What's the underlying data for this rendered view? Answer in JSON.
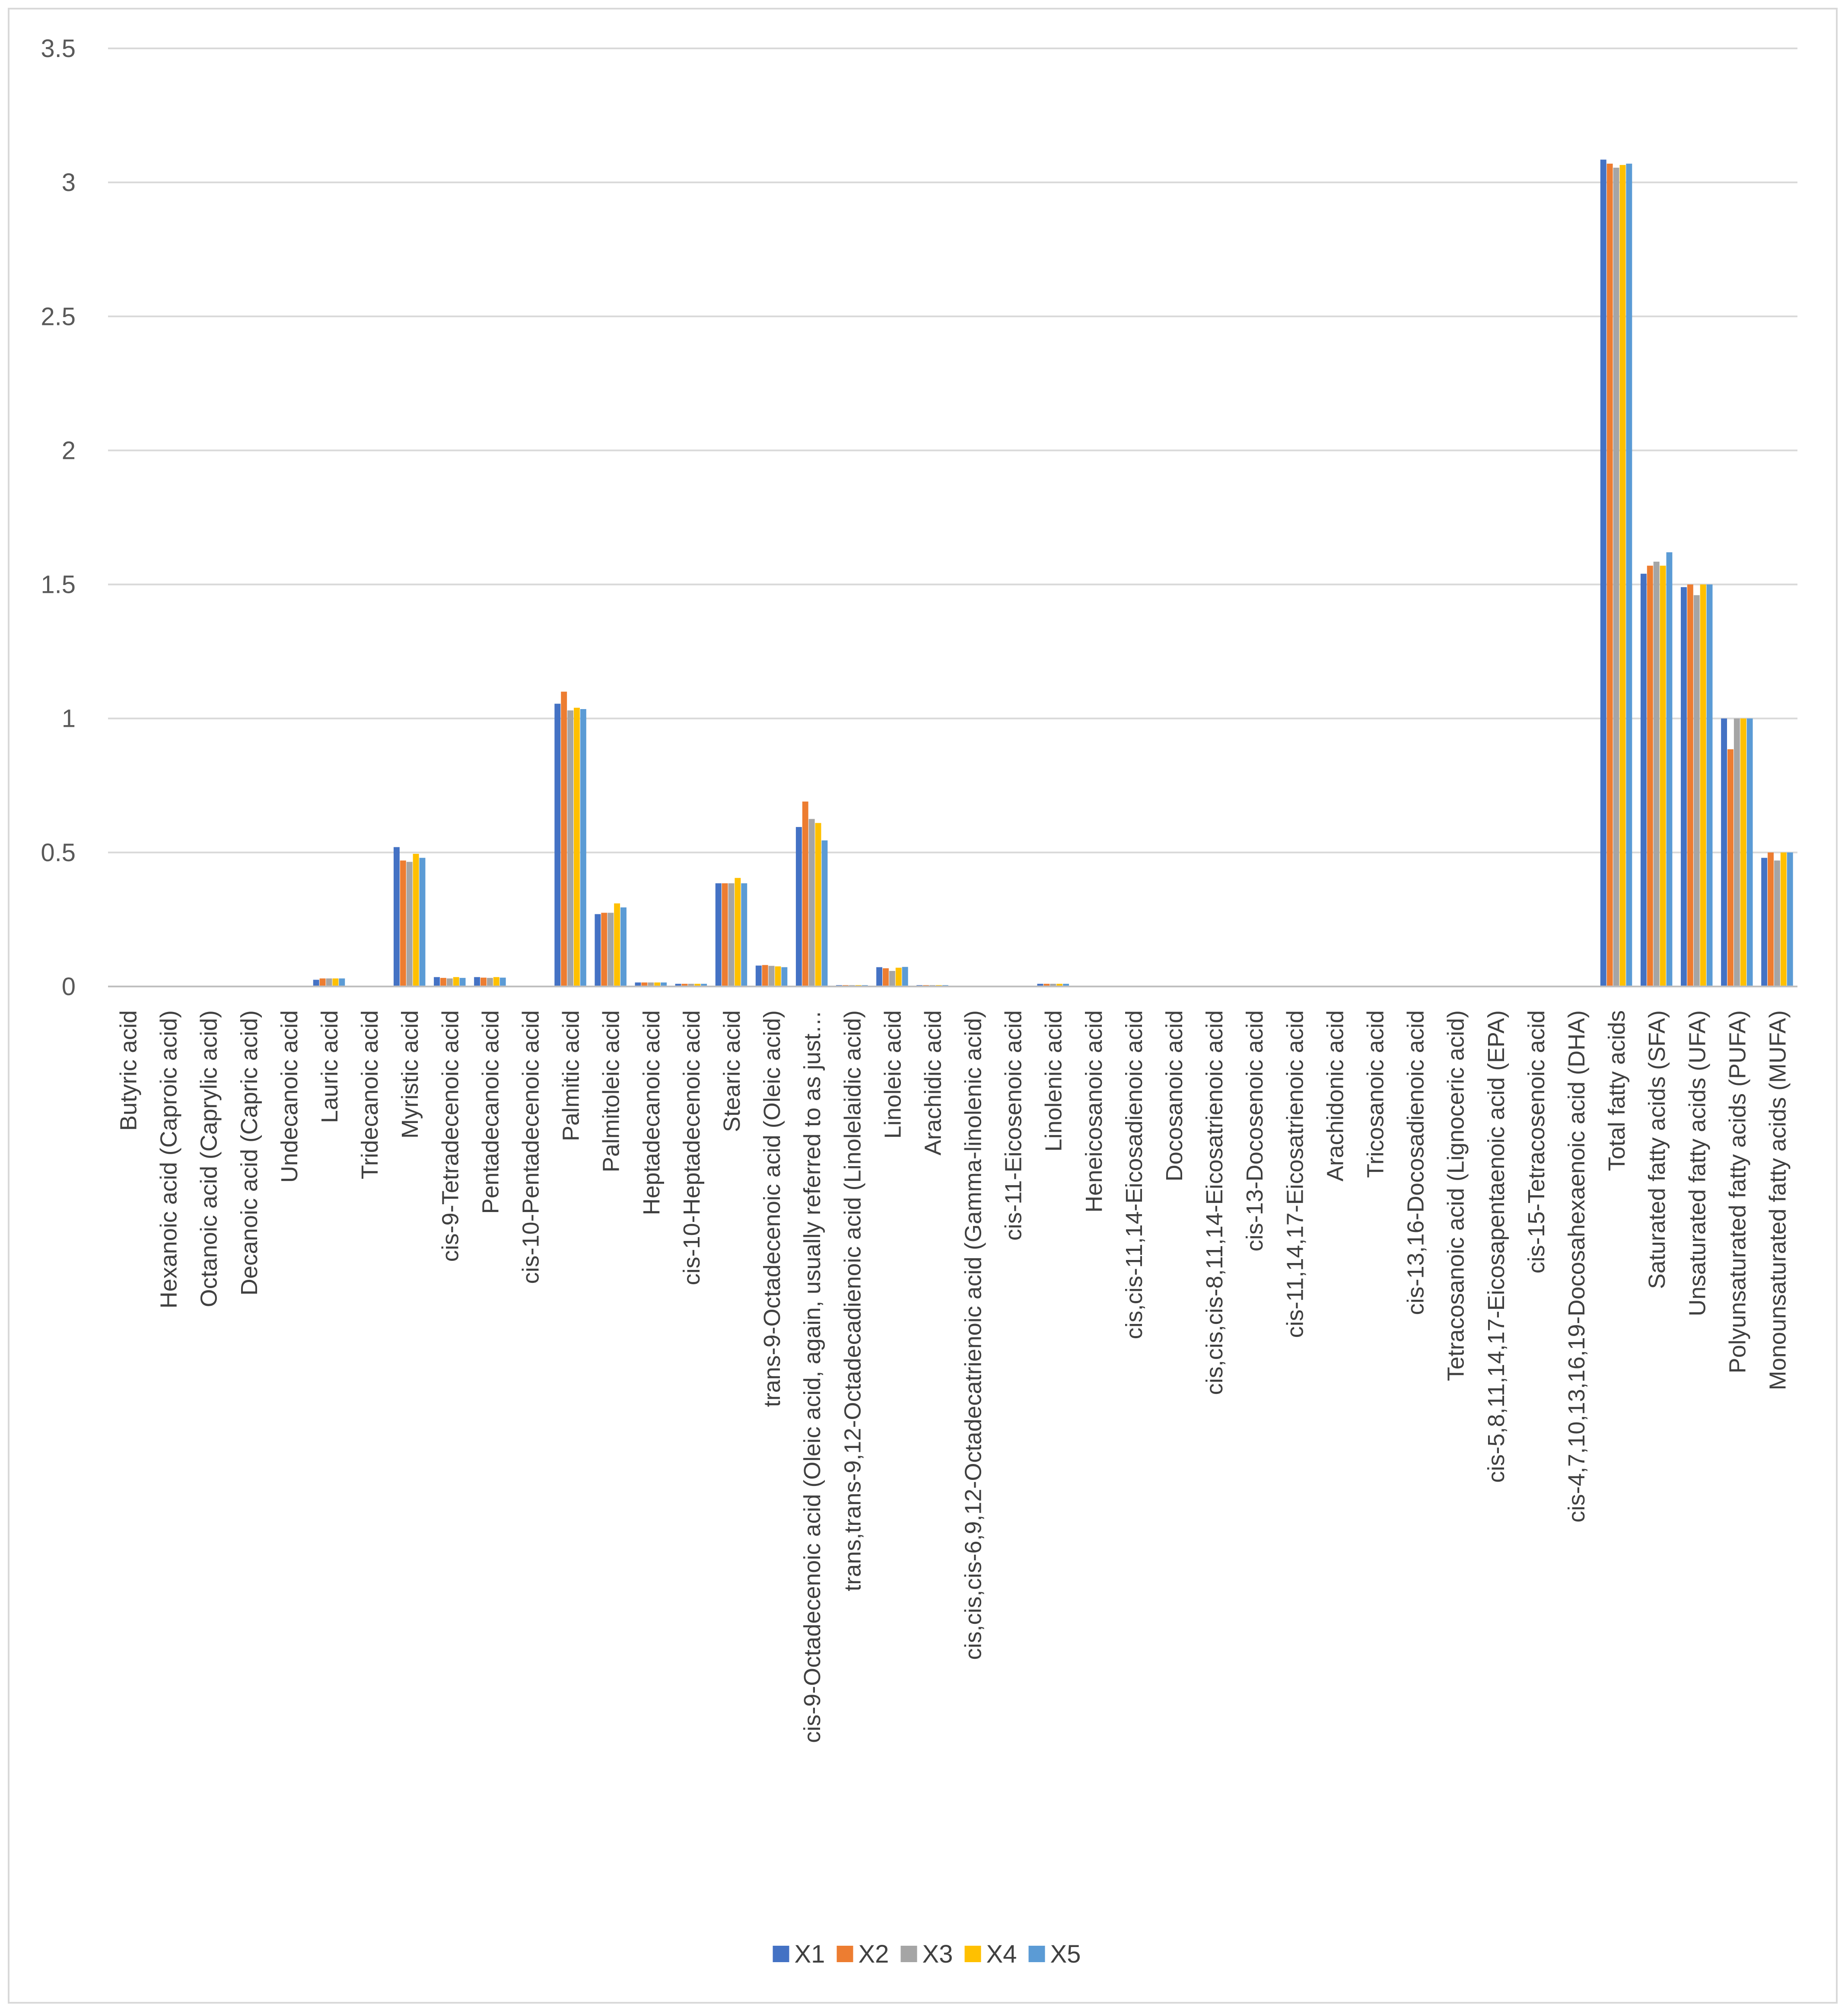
{
  "chart_data": {
    "type": "bar",
    "title": "",
    "xlabel": "",
    "ylabel": "",
    "ylim": [
      0,
      3.5
    ],
    "yticks": [
      0,
      0.5,
      1,
      1.5,
      2,
      2.5,
      3,
      3.5
    ],
    "ytick_labels": [
      "0",
      "0.5",
      "1",
      "1.5",
      "2",
      "2.5",
      "3",
      "3.5"
    ],
    "grid": true,
    "legend_position": "bottom",
    "categories": [
      "Butyric acid",
      "Hexanoic acid (Caproic acid)",
      "Octanoic acid (Caprylic acid)",
      "Decanoic acid (Capric acid)",
      "Undecanoic acid",
      "Lauric acid",
      "Tridecanoic acid",
      "Myristic acid",
      "cis-9-Tetradecenoic acid",
      "Pentadecanoic acid",
      "cis-10-Pentadecenoic acid",
      "Palmitic acid",
      "Palmitoleic acid",
      "Heptadecanoic acid",
      "cis-10-Heptadecenoic acid",
      "Stearic acid",
      "trans-9-Octadecenoic acid (Oleic acid)",
      "cis-9-Octadecenoic acid (Oleic acid, again, usually referred to as just…",
      "trans,trans-9,12-Octadecadienoic acid (Linolelaidic acid)",
      "Linoleic acid",
      "Arachidic acid",
      "cis,cis,cis-6,9,12-Octadecatrienoic acid (Gamma-linolenic acid)",
      "cis-11-Eicosenoic acid",
      "Linolenic acid",
      "Heneicosanoic acid",
      "cis,cis-11,14-Eicosadienoic acid",
      "Docosanoic acid",
      "cis,cis,cis-8,11,14-Eicosatrienoic acid",
      "cis-13-Docosenoic acid",
      "cis-11,14,17-Eicosatrienoic acid",
      "Arachidonic acid",
      "Tricosanoic acid",
      "cis-13,16-Docosadienoic acid",
      "Tetracosanoic acid (Lignoceric acid)",
      "cis-5,8,11,14,17-Eicosapentaenoic acid (EPA)",
      "cis-15-Tetracosenoic acid",
      "cis-4,7,10,13,16,19-Docosahexaenoic acid (DHA)",
      "Total fatty acids",
      "Saturated fatty acids (SFA)",
      "Unsaturated fatty acids (UFA)",
      "Polyunsaturated fatty acids (PUFA)",
      "Monounsaturated fatty acids (MUFA)"
    ],
    "series": [
      {
        "name": "X1",
        "color": "#4472c4",
        "values": [
          0,
          0,
          0,
          0,
          0,
          0.025,
          0,
          0.52,
          0.035,
          0.035,
          0,
          1.055,
          0.27,
          0.015,
          0.01,
          0.385,
          0.078,
          0.595,
          0.005,
          0.072,
          0.005,
          0,
          0,
          0.01,
          0,
          0,
          0,
          0,
          0,
          0,
          0,
          0,
          0,
          0,
          0,
          0,
          0,
          3.085,
          1.54,
          1.49,
          1.0,
          0.48
        ]
      },
      {
        "name": "X2",
        "color": "#ed7d31",
        "values": [
          0,
          0,
          0,
          0,
          0,
          0.03,
          0,
          0.47,
          0.032,
          0.033,
          0,
          1.1,
          0.275,
          0.015,
          0.01,
          0.385,
          0.08,
          0.69,
          0.005,
          0.068,
          0.005,
          0,
          0,
          0.01,
          0,
          0,
          0,
          0,
          0,
          0,
          0,
          0,
          0,
          0,
          0,
          0,
          0,
          3.07,
          1.57,
          1.5,
          0.885,
          0.5
        ]
      },
      {
        "name": "X3",
        "color": "#a5a5a5",
        "values": [
          0,
          0,
          0,
          0,
          0,
          0.03,
          0,
          0.465,
          0.03,
          0.032,
          0,
          1.03,
          0.275,
          0.015,
          0.01,
          0.385,
          0.077,
          0.625,
          0.005,
          0.058,
          0.005,
          0,
          0,
          0.01,
          0,
          0,
          0,
          0,
          0,
          0,
          0,
          0,
          0,
          0,
          0,
          0,
          0,
          3.055,
          1.585,
          1.46,
          1.0,
          0.47
        ]
      },
      {
        "name": "X4",
        "color": "#ffc000",
        "values": [
          0,
          0,
          0,
          0,
          0,
          0.03,
          0,
          0.495,
          0.035,
          0.035,
          0,
          1.04,
          0.31,
          0.015,
          0.01,
          0.405,
          0.075,
          0.61,
          0.005,
          0.07,
          0.005,
          0,
          0,
          0.01,
          0,
          0,
          0,
          0,
          0,
          0,
          0,
          0,
          0,
          0,
          0,
          0,
          0,
          3.065,
          1.57,
          1.5,
          1.0,
          0.5
        ]
      },
      {
        "name": "X5",
        "color": "#5b9bd5",
        "values": [
          0,
          0,
          0,
          0,
          0,
          0.03,
          0,
          0.48,
          0.032,
          0.033,
          0,
          1.035,
          0.295,
          0.015,
          0.01,
          0.385,
          0.072,
          0.545,
          0.005,
          0.073,
          0.005,
          0,
          0,
          0.01,
          0,
          0,
          0,
          0,
          0,
          0,
          0,
          0,
          0,
          0,
          0,
          0,
          0,
          3.07,
          1.62,
          1.5,
          1.0,
          0.5
        ]
      }
    ]
  },
  "colors": {
    "gridline": "#d9d9d9",
    "axis": "#bfbfbf",
    "frame_border": "#d9d9d9"
  }
}
